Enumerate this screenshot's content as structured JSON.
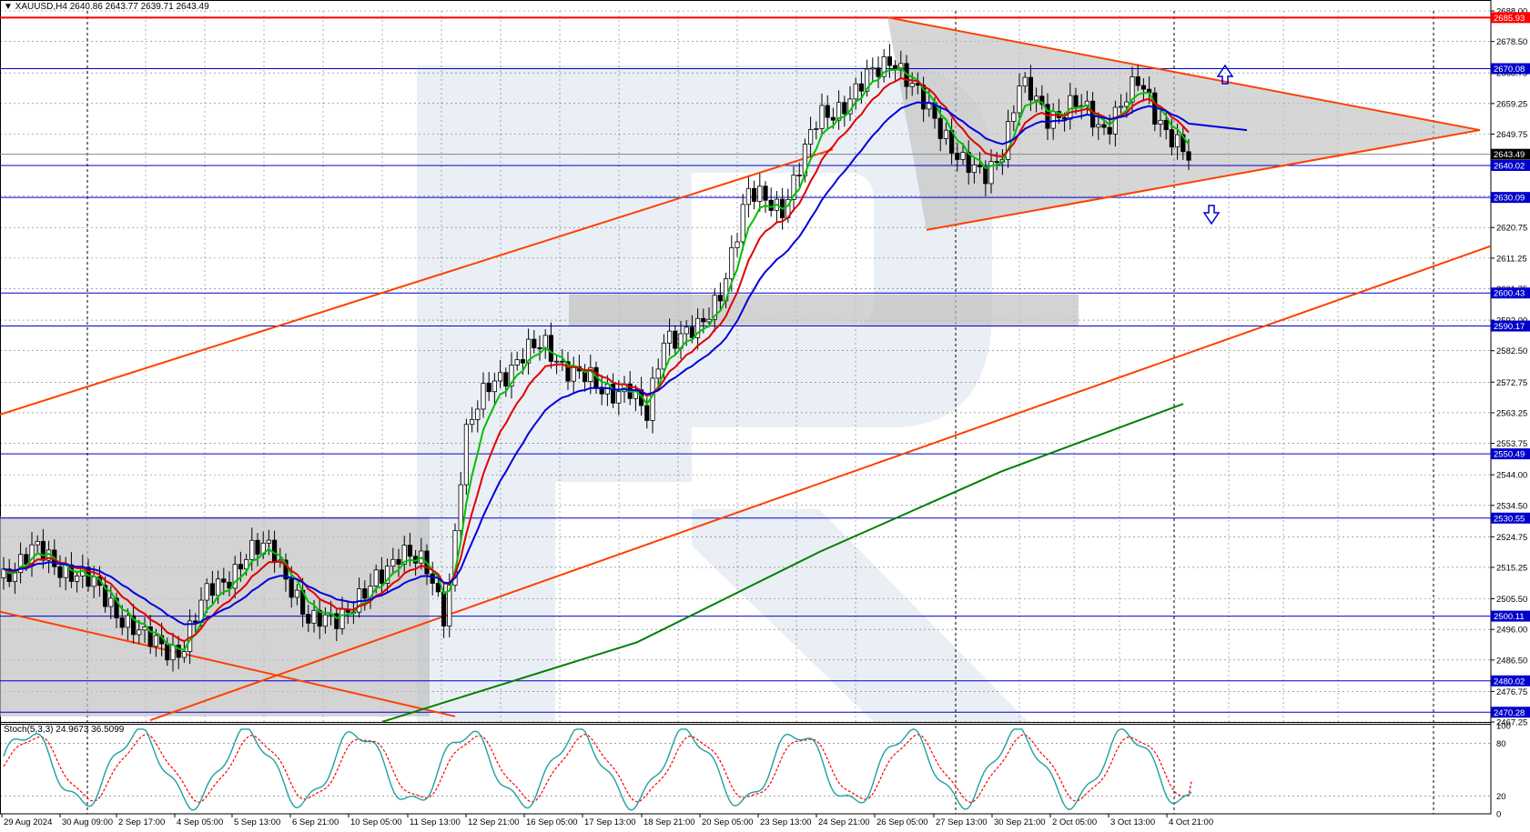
{
  "header": {
    "symbol": "XAUUSD,H4",
    "ohlc": "2640.86 2643.77 2639.71 2643.49",
    "menu_icon": "triangle-down-icon"
  },
  "stoch_header": "Stoch(5,3,3) 24.9673 36.5099",
  "colors": {
    "background": "#ffffff",
    "grid": "#000000",
    "bull_candle": "#ffffff",
    "bear_candle": "#000000",
    "ma_fast": "#00c000",
    "ma_mid": "#e00000",
    "ma_slow": "#0000dd",
    "ma_long": "#008000",
    "trendline": "#ff4000",
    "level_line": "#0000cc",
    "resistance_line": "#ff0000",
    "zone_fill": "#c0c0c0",
    "stoch_main": "#20a0a0",
    "stoch_signal": "#ff0000",
    "arrow": "#0000cc",
    "watermark": "#dfe6f0"
  },
  "chart_data": {
    "type": "candlestick",
    "symbol": "XAUUSD",
    "timeframe": "H4",
    "y_range": [
      2467.25,
      2688.0
    ],
    "y_ticks": [
      "2688.00",
      "2678.50",
      "2668.75",
      "2659.25",
      "2649.75",
      "2640.00",
      "2630.50",
      "2620.75",
      "2611.25",
      "2601.75",
      "2592.00",
      "2582.50",
      "2572.75",
      "2563.25",
      "2553.75",
      "2544.00",
      "2534.50",
      "2524.75",
      "2515.25",
      "2505.50",
      "2496.00",
      "2486.50",
      "2476.75",
      "2467.25"
    ],
    "x_labels": [
      "29 Aug 2024",
      "30 Aug 09:00",
      "2 Sep 17:00",
      "4 Sep 05:00",
      "5 Sep 13:00",
      "6 Sep 21:00",
      "10 Sep 05:00",
      "11 Sep 13:00",
      "12 Sep 21:00",
      "16 Sep 05:00",
      "17 Sep 13:00",
      "18 Sep 21:00",
      "20 Sep 05:00",
      "23 Sep 13:00",
      "24 Sep 21:00",
      "26 Sep 05:00",
      "27 Sep 13:00",
      "30 Sep 21:00",
      "2 Oct 05:00",
      "3 Oct 13:00",
      "4 Oct 21:00"
    ],
    "levels": [
      {
        "value": 2685.93,
        "label": "2685.93",
        "kind": "resistance"
      },
      {
        "value": 2670.08,
        "label": "2670.08",
        "kind": "level"
      },
      {
        "value": 2643.49,
        "label": "2643.49",
        "kind": "price"
      },
      {
        "value": 2640.02,
        "label": "2640.02",
        "kind": "level"
      },
      {
        "value": 2630.09,
        "label": "2630.09",
        "kind": "level"
      },
      {
        "value": 2600.43,
        "label": "2600.43",
        "kind": "level"
      },
      {
        "value": 2590.17,
        "label": "2590.17",
        "kind": "level"
      },
      {
        "value": 2550.49,
        "label": "2550.49",
        "kind": "level"
      },
      {
        "value": 2530.55,
        "label": "2530.55",
        "kind": "level"
      },
      {
        "value": 2500.11,
        "label": "2500.11",
        "kind": "level"
      },
      {
        "value": 2480.02,
        "label": "2480.02",
        "kind": "level"
      },
      {
        "value": 2470.28,
        "label": "2470.28",
        "kind": "level"
      }
    ],
    "stochastic": {
      "params": "5,3,3",
      "main": 24.9673,
      "signal": 36.5099,
      "y_ticks": [
        "100",
        "80",
        "20",
        "0"
      ]
    }
  }
}
